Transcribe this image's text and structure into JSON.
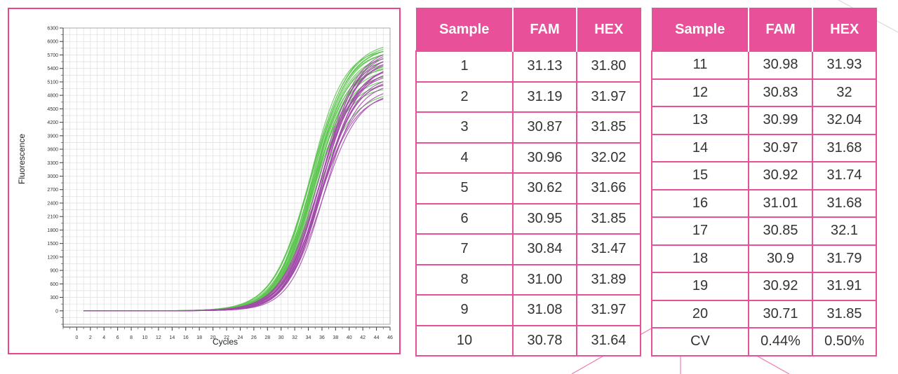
{
  "chart_data": {
    "type": "line",
    "title": "",
    "xlabel": "Cycles",
    "ylabel": "Fluorescence",
    "xlim": [
      -2,
      46
    ],
    "ylim": [
      -300,
      6300
    ],
    "x_ticks": [
      0,
      2,
      4,
      6,
      8,
      10,
      12,
      14,
      16,
      18,
      20,
      22,
      24,
      26,
      28,
      30,
      32,
      34,
      36,
      38,
      40,
      42,
      44,
      46
    ],
    "y_ticks": [
      0,
      300,
      600,
      900,
      1200,
      1500,
      1800,
      2100,
      2400,
      2700,
      3000,
      3300,
      3600,
      3900,
      4200,
      4500,
      4800,
      5100,
      5400,
      5700,
      6000,
      6300
    ],
    "grid": true,
    "colors": {
      "FAM": "#5cc44f",
      "HEX": "#a24aa8"
    },
    "series": [
      {
        "name": "FAM",
        "color": "#5cc44f",
        "x_start": 1,
        "x_end": 45,
        "midpoints": [
          34.4,
          34.6,
          34.5,
          34.8,
          34.3,
          34.7,
          34.9,
          34.2,
          34.6,
          34.5,
          34.7,
          35.0,
          34.4,
          34.8,
          34.5,
          34.6,
          34.9,
          34.3,
          34.7,
          34.5
        ],
        "plateaus": [
          6000,
          5900,
          5800,
          5700,
          5950,
          5600,
          5500,
          5850,
          5750,
          5650,
          5400,
          5300,
          5900,
          5550,
          5100,
          5000,
          4900,
          5200,
          5800,
          5450
        ]
      },
      {
        "name": "HEX",
        "color": "#a24aa8",
        "x_start": 1,
        "x_end": 45,
        "midpoints": [
          35.6,
          35.8,
          35.7,
          36.0,
          35.5,
          35.9,
          36.1,
          35.6,
          35.8,
          35.7,
          35.9,
          36.2,
          35.6,
          36.0,
          35.8,
          35.7,
          36.1,
          35.5,
          35.9,
          35.8
        ],
        "plateaus": [
          5900,
          5800,
          5700,
          5600,
          5500,
          5850,
          5400,
          5300,
          5750,
          5650,
          5200,
          5100,
          5000,
          4900,
          5450,
          5350,
          5550,
          4850,
          5250,
          5150
        ]
      }
    ]
  },
  "tables": {
    "headers": {
      "sample": "Sample",
      "fam": "FAM",
      "hex": "HEX"
    },
    "left": [
      {
        "sample": "1",
        "fam": "31.13",
        "hex": "31.80"
      },
      {
        "sample": "2",
        "fam": "31.19",
        "hex": "31.97"
      },
      {
        "sample": "3",
        "fam": "30.87",
        "hex": "31.85"
      },
      {
        "sample": "4",
        "fam": "30.96",
        "hex": "32.02"
      },
      {
        "sample": "5",
        "fam": "30.62",
        "hex": "31.66"
      },
      {
        "sample": "6",
        "fam": "30.95",
        "hex": "31.85"
      },
      {
        "sample": "7",
        "fam": "30.84",
        "hex": "31.47"
      },
      {
        "sample": "8",
        "fam": "31.00",
        "hex": "31.89"
      },
      {
        "sample": "9",
        "fam": "31.08",
        "hex": "31.97"
      },
      {
        "sample": "10",
        "fam": "30.78",
        "hex": "31.64"
      }
    ],
    "right": [
      {
        "sample": "11",
        "fam": "30.98",
        "hex": "31.93"
      },
      {
        "sample": "12",
        "fam": "30.83",
        "hex": "32"
      },
      {
        "sample": "13",
        "fam": "30.99",
        "hex": "32.04"
      },
      {
        "sample": "14",
        "fam": "30.97",
        "hex": "31.68"
      },
      {
        "sample": "15",
        "fam": "30.92",
        "hex": "31.74"
      },
      {
        "sample": "16",
        "fam": "31.01",
        "hex": "31.68"
      },
      {
        "sample": "17",
        "fam": "30.85",
        "hex": "32.1"
      },
      {
        "sample": "18",
        "fam": "30.9",
        "hex": "31.79"
      },
      {
        "sample": "19",
        "fam": "30.92",
        "hex": "31.91"
      },
      {
        "sample": "20",
        "fam": "30.71",
        "hex": "31.85"
      },
      {
        "sample": "CV",
        "fam": "0.44%",
        "hex": "0.50%"
      }
    ]
  },
  "theme": {
    "accent": "#e8509a",
    "border": "#e8458a"
  }
}
